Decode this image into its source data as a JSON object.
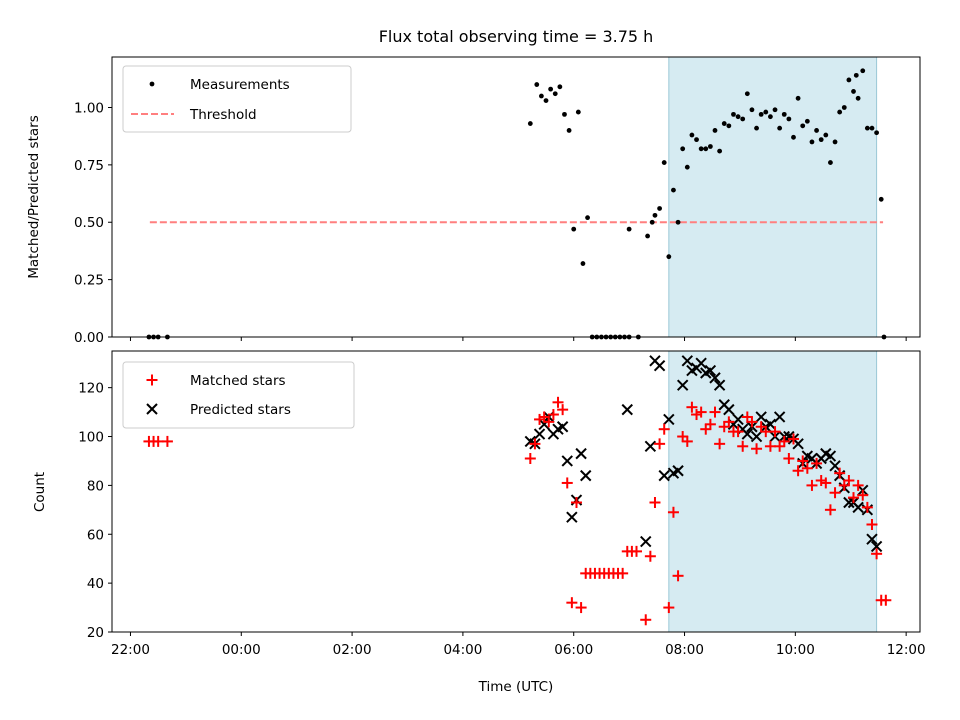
{
  "figure": {
    "title": "Flux total observing time = 3.75 h",
    "xlabel": "Time (UTC)",
    "x_tick_labels": [
      "22:00",
      "00:00",
      "02:00",
      "04:00",
      "06:00",
      "08:00",
      "10:00",
      "12:00"
    ]
  },
  "colors": {
    "measurements": "#000000",
    "threshold": "#ff7f7f",
    "matched": "#ff0000",
    "predicted": "#000000",
    "shade": "#add8e6"
  },
  "chart_data": [
    {
      "type": "scatter",
      "panel": "top",
      "ylabel": "Matched/Predicted stars",
      "xlim": [
        "21:40",
        "12:15"
      ],
      "ylim": [
        0,
        1.22
      ],
      "y_ticks": [
        "0.00",
        "0.25",
        "0.50",
        "0.75",
        "1.00"
      ],
      "legend": {
        "position": "upper left",
        "entries": [
          "Measurements",
          "Threshold"
        ]
      },
      "shaded_span": [
        "07:43",
        "11:28"
      ],
      "threshold": {
        "value": 0.5,
        "x": [
          "22:21",
          "11:35"
        ]
      },
      "series": [
        {
          "name": "Measurements",
          "marker": "dot",
          "points": [
            [
              "22:20",
              0
            ],
            [
              "22:25",
              0
            ],
            [
              "22:30",
              0
            ],
            [
              "22:40",
              0
            ],
            [
              "05:13",
              0.93
            ],
            [
              "05:20",
              1.1
            ],
            [
              "05:25",
              1.05
            ],
            [
              "05:30",
              1.03
            ],
            [
              "05:35",
              1.08
            ],
            [
              "05:40",
              1.06
            ],
            [
              "05:45",
              1.09
            ],
            [
              "05:50",
              0.97
            ],
            [
              "05:55",
              0.9
            ],
            [
              "06:00",
              0.47
            ],
            [
              "06:05",
              0.98
            ],
            [
              "06:10",
              0.32
            ],
            [
              "06:15",
              0.52
            ],
            [
              "06:20",
              0
            ],
            [
              "06:25",
              0
            ],
            [
              "06:30",
              0
            ],
            [
              "06:35",
              0
            ],
            [
              "06:40",
              0
            ],
            [
              "06:45",
              0
            ],
            [
              "06:50",
              0
            ],
            [
              "06:55",
              0
            ],
            [
              "07:00",
              0
            ],
            [
              "07:00",
              0.47
            ],
            [
              "07:10",
              0
            ],
            [
              "07:20",
              0.44
            ],
            [
              "07:25",
              0.5
            ],
            [
              "07:28",
              0.53
            ],
            [
              "07:33",
              0.56
            ],
            [
              "07:38",
              0.76
            ],
            [
              "07:43",
              0.35
            ],
            [
              "07:48",
              0.64
            ],
            [
              "07:53",
              0.5
            ],
            [
              "07:58",
              0.82
            ],
            [
              "08:03",
              0.74
            ],
            [
              "08:08",
              0.88
            ],
            [
              "08:13",
              0.86
            ],
            [
              "08:18",
              0.82
            ],
            [
              "08:23",
              0.82
            ],
            [
              "08:28",
              0.83
            ],
            [
              "08:33",
              0.9
            ],
            [
              "08:38",
              0.81
            ],
            [
              "08:43",
              0.93
            ],
            [
              "08:48",
              0.92
            ],
            [
              "08:53",
              0.97
            ],
            [
              "08:58",
              0.96
            ],
            [
              "09:03",
              0.95
            ],
            [
              "09:08",
              1.06
            ],
            [
              "09:13",
              0.99
            ],
            [
              "09:18",
              0.91
            ],
            [
              "09:23",
              0.97
            ],
            [
              "09:28",
              0.98
            ],
            [
              "09:33",
              0.96
            ],
            [
              "09:38",
              0.99
            ],
            [
              "09:43",
              0.91
            ],
            [
              "09:48",
              0.97
            ],
            [
              "09:53",
              0.95
            ],
            [
              "09:58",
              0.87
            ],
            [
              "10:03",
              1.04
            ],
            [
              "10:08",
              0.92
            ],
            [
              "10:13",
              0.94
            ],
            [
              "10:18",
              0.85
            ],
            [
              "10:23",
              0.9
            ],
            [
              "10:28",
              0.86
            ],
            [
              "10:33",
              0.88
            ],
            [
              "10:38",
              0.76
            ],
            [
              "10:43",
              0.85
            ],
            [
              "10:48",
              0.98
            ],
            [
              "10:53",
              1.0
            ],
            [
              "10:58",
              1.12
            ],
            [
              "11:03",
              1.07
            ],
            [
              "11:06",
              1.14
            ],
            [
              "11:08",
              1.04
            ],
            [
              "11:13",
              1.16
            ],
            [
              "11:18",
              0.91
            ],
            [
              "11:23",
              0.91
            ],
            [
              "11:28",
              0.89
            ],
            [
              "11:33",
              0.6
            ],
            [
              "11:36",
              0
            ]
          ]
        }
      ]
    },
    {
      "type": "scatter",
      "panel": "bottom",
      "ylabel": "Count",
      "xlim": [
        "21:40",
        "12:15"
      ],
      "ylim": [
        20,
        135
      ],
      "y_ticks": [
        "20",
        "40",
        "60",
        "80",
        "100",
        "120"
      ],
      "legend": {
        "position": "upper left",
        "entries": [
          "Matched stars",
          "Predicted stars"
        ]
      },
      "shaded_span": [
        "07:43",
        "11:28"
      ],
      "series": [
        {
          "name": "Matched stars",
          "marker": "plus",
          "points": [
            [
              "22:20",
              98
            ],
            [
              "22:25",
              98
            ],
            [
              "22:30",
              98
            ],
            [
              "22:40",
              98
            ],
            [
              "05:13",
              91
            ],
            [
              "05:18",
              97
            ],
            [
              "05:23",
              107
            ],
            [
              "05:28",
              108
            ],
            [
              "05:33",
              106
            ],
            [
              "05:38",
              109
            ],
            [
              "05:43",
              114
            ],
            [
              "05:48",
              111
            ],
            [
              "05:53",
              81
            ],
            [
              "05:58",
              32
            ],
            [
              "06:03",
              73
            ],
            [
              "06:08",
              30
            ],
            [
              "06:13",
              44
            ],
            [
              "06:18",
              44
            ],
            [
              "06:23",
              44
            ],
            [
              "06:28",
              44
            ],
            [
              "06:33",
              44
            ],
            [
              "06:38",
              44
            ],
            [
              "06:43",
              44
            ],
            [
              "06:48",
              44
            ],
            [
              "06:53",
              44
            ],
            [
              "06:58",
              53
            ],
            [
              "07:03",
              53
            ],
            [
              "07:08",
              53
            ],
            [
              "07:18",
              25
            ],
            [
              "07:23",
              51
            ],
            [
              "07:28",
              73
            ],
            [
              "07:33",
              97
            ],
            [
              "07:38",
              103
            ],
            [
              "07:43",
              30
            ],
            [
              "07:48",
              69
            ],
            [
              "07:53",
              43
            ],
            [
              "07:58",
              100
            ],
            [
              "08:03",
              98
            ],
            [
              "08:08",
              112
            ],
            [
              "08:13",
              109
            ],
            [
              "08:18",
              110
            ],
            [
              "08:23",
              103
            ],
            [
              "08:28",
              105
            ],
            [
              "08:33",
              110
            ],
            [
              "08:38",
              97
            ],
            [
              "08:43",
              104
            ],
            [
              "08:48",
              106
            ],
            [
              "08:53",
              102
            ],
            [
              "08:58",
              102
            ],
            [
              "09:03",
              96
            ],
            [
              "09:08",
              108
            ],
            [
              "09:13",
              106
            ],
            [
              "09:18",
              95
            ],
            [
              "09:23",
              104
            ],
            [
              "09:28",
              102
            ],
            [
              "09:33",
              96
            ],
            [
              "09:38",
              102
            ],
            [
              "09:43",
              96
            ],
            [
              "09:48",
              98
            ],
            [
              "09:53",
              91
            ],
            [
              "09:58",
              99
            ],
            [
              "10:03",
              86
            ],
            [
              "10:08",
              90
            ],
            [
              "10:13",
              87
            ],
            [
              "10:18",
              80
            ],
            [
              "10:23",
              89
            ],
            [
              "10:28",
              82
            ],
            [
              "10:33",
              81
            ],
            [
              "10:38",
              70
            ],
            [
              "10:43",
              77
            ],
            [
              "10:48",
              85
            ],
            [
              "10:53",
              80
            ],
            [
              "10:58",
              82
            ],
            [
              "11:03",
              75
            ],
            [
              "11:08",
              80
            ],
            [
              "11:13",
              76
            ],
            [
              "11:18",
              71
            ],
            [
              "11:23",
              64
            ],
            [
              "11:28",
              52
            ],
            [
              "11:33",
              33
            ],
            [
              "11:38",
              33
            ]
          ]
        },
        {
          "name": "Predicted stars",
          "marker": "cross",
          "points": [
            [
              "05:13",
              98
            ],
            [
              "05:18",
              97
            ],
            [
              "05:23",
              101
            ],
            [
              "05:28",
              105
            ],
            [
              "05:33",
              108
            ],
            [
              "05:38",
              101
            ],
            [
              "05:43",
              103
            ],
            [
              "05:48",
              104
            ],
            [
              "05:53",
              90
            ],
            [
              "05:58",
              67
            ],
            [
              "06:03",
              74
            ],
            [
              "06:08",
              93
            ],
            [
              "06:13",
              84
            ],
            [
              "06:58",
              111
            ],
            [
              "07:18",
              57
            ],
            [
              "07:23",
              96
            ],
            [
              "07:28",
              131
            ],
            [
              "07:33",
              129
            ],
            [
              "07:38",
              84
            ],
            [
              "07:43",
              107
            ],
            [
              "07:48",
              85
            ],
            [
              "07:53",
              86
            ],
            [
              "07:58",
              121
            ],
            [
              "08:03",
              131
            ],
            [
              "08:08",
              127
            ],
            [
              "08:13",
              128
            ],
            [
              "08:18",
              130
            ],
            [
              "08:23",
              126
            ],
            [
              "08:28",
              127
            ],
            [
              "08:33",
              124
            ],
            [
              "08:38",
              121
            ],
            [
              "08:43",
              113
            ],
            [
              "08:48",
              111
            ],
            [
              "08:53",
              105
            ],
            [
              "08:58",
              107
            ],
            [
              "09:03",
              103
            ],
            [
              "09:08",
              101
            ],
            [
              "09:13",
              104
            ],
            [
              "09:18",
              100
            ],
            [
              "09:23",
              108
            ],
            [
              "09:28",
              104
            ],
            [
              "09:33",
              105
            ],
            [
              "09:38",
              100
            ],
            [
              "09:43",
              108
            ],
            [
              "09:48",
              100
            ],
            [
              "09:53",
              100
            ],
            [
              "09:58",
              99
            ],
            [
              "10:03",
              97
            ],
            [
              "10:08",
              89
            ],
            [
              "10:13",
              92
            ],
            [
              "10:18",
              91
            ],
            [
              "10:23",
              89
            ],
            [
              "10:28",
              91
            ],
            [
              "10:33",
              93
            ],
            [
              "10:38",
              92
            ],
            [
              "10:43",
              88
            ],
            [
              "10:48",
              84
            ],
            [
              "10:53",
              79
            ],
            [
              "10:58",
              73
            ],
            [
              "11:03",
              73
            ],
            [
              "11:08",
              71
            ],
            [
              "11:13",
              78
            ],
            [
              "11:18",
              70
            ],
            [
              "11:23",
              58
            ],
            [
              "11:28",
              55
            ]
          ]
        }
      ]
    }
  ]
}
